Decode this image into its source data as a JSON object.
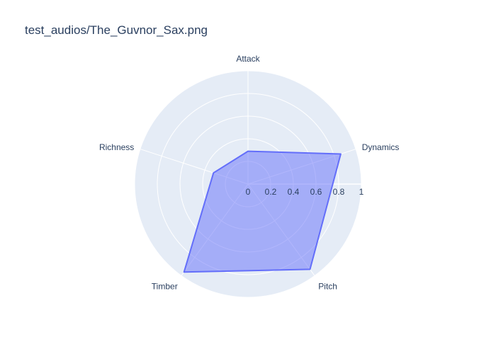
{
  "chart_data": {
    "type": "radar",
    "title": "test_audios/The_Guvnor_Sax.png",
    "categories": [
      "Attack",
      "Dynamics",
      "Pitch",
      "Timber",
      "Richness"
    ],
    "values": [
      0.29,
      0.86,
      0.93,
      0.96,
      0.32
    ],
    "radial_range": [
      0,
      1
    ],
    "radial_ticks": [
      "0",
      "0.2",
      "0.4",
      "0.6",
      "0.8",
      "1"
    ],
    "grid": true,
    "fill_color": "#636efa",
    "background_color": "#e5ecf6"
  }
}
